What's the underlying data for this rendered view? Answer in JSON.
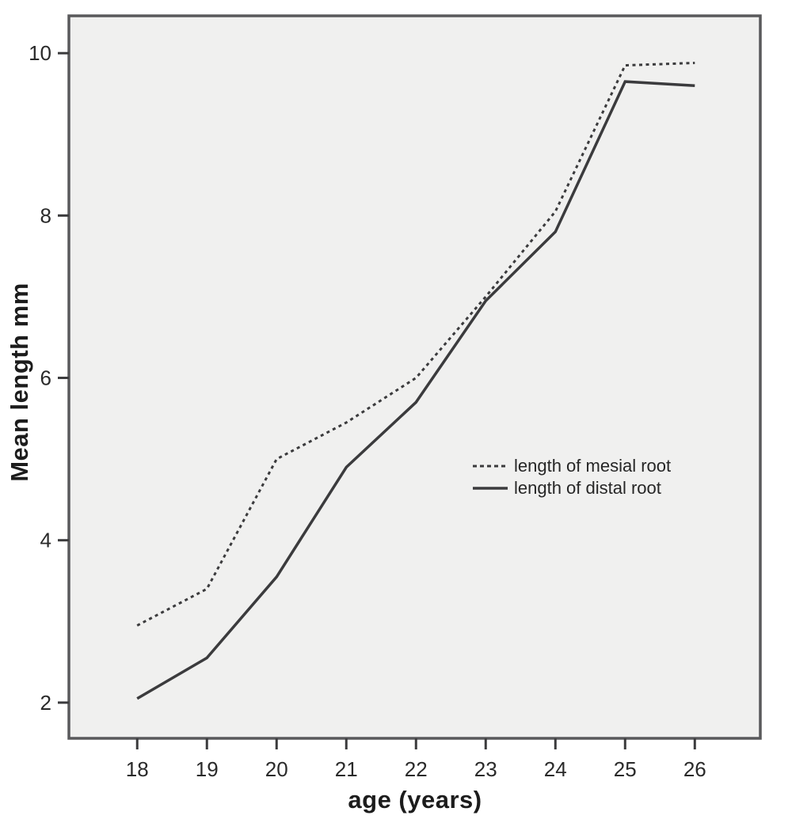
{
  "chart_data": {
    "type": "line",
    "title": "",
    "xlabel": "age (years)",
    "ylabel": "Mean length mm",
    "x": [
      18,
      19,
      20,
      21,
      22,
      23,
      24,
      25,
      26
    ],
    "x_ticks": [
      18,
      19,
      20,
      21,
      22,
      23,
      24,
      25,
      26
    ],
    "y_ticks": [
      2,
      4,
      6,
      8,
      10
    ],
    "xlim": [
      17.02,
      26.94
    ],
    "ylim": [
      1.56,
      10.46
    ],
    "grid": false,
    "legend_position": "middle-right-inside",
    "series": [
      {
        "name": "length of mesial root",
        "style": "dashed",
        "values": [
          2.95,
          3.4,
          5.0,
          5.45,
          6.0,
          7.0,
          8.05,
          9.85,
          9.88
        ]
      },
      {
        "name": "length of distal root",
        "style": "solid",
        "values": [
          2.05,
          2.55,
          3.55,
          4.9,
          5.7,
          6.95,
          7.8,
          9.65,
          9.6
        ]
      }
    ],
    "colors": {
      "line": "#3b3b3d",
      "plot_bg": "#f0f0ef",
      "frame": "#59595b",
      "tick": "#3b3b3d",
      "text": "#262626",
      "page_bg": "#ffffff"
    }
  }
}
